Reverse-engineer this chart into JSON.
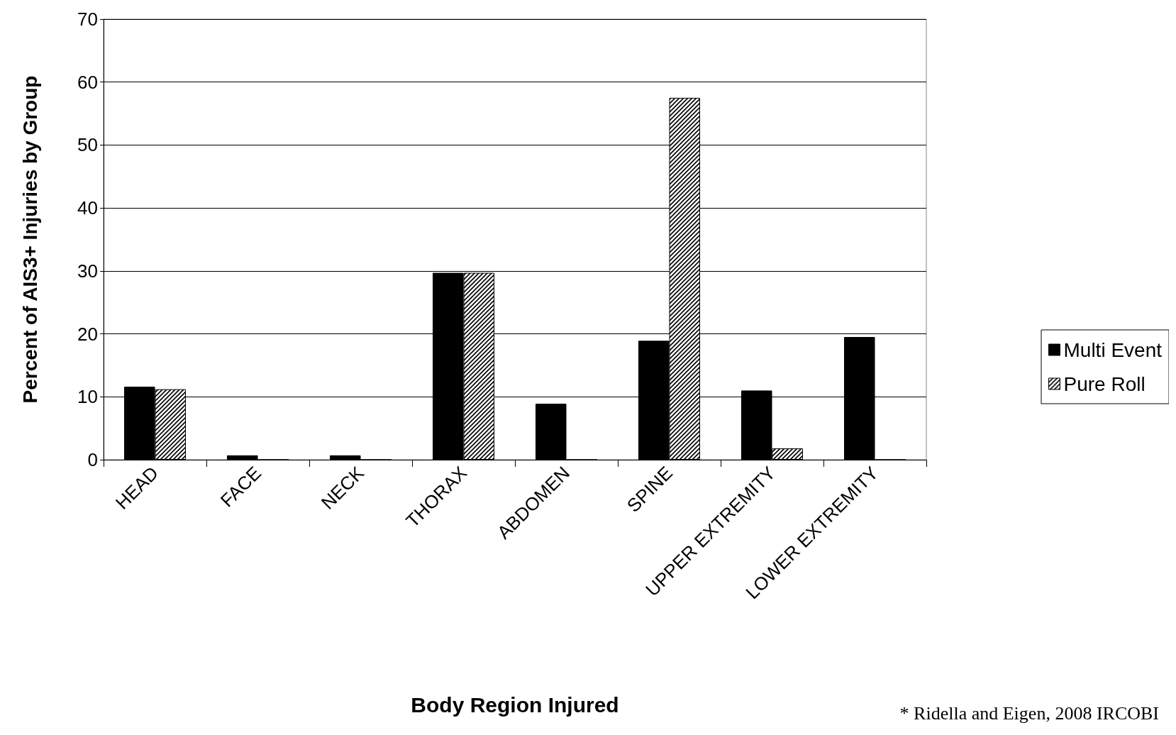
{
  "chart_data": {
    "type": "bar",
    "xlabel": "Body Region Injured",
    "ylabel": "Percent of AIS3+ Injuries by Group",
    "categories": [
      "HEAD",
      "FACE",
      "NECK",
      "THORAX",
      "ABDOMEN",
      "SPINE",
      "UPPER EXTREMITY",
      "LOWER EXTREMITY"
    ],
    "series": [
      {
        "name": "Multi Event",
        "color": "#000000",
        "values": [
          11.6,
          0.7,
          0.7,
          29.7,
          8.9,
          18.9,
          11.0,
          19.5
        ]
      },
      {
        "name": "Pure Roll",
        "color": "#000000",
        "values": [
          11.2,
          0,
          0,
          29.7,
          0,
          57.5,
          1.8,
          0
        ]
      }
    ],
    "ylim": [
      0,
      70
    ],
    "yticks": [
      0,
      10,
      20,
      30,
      40,
      50,
      60,
      70
    ],
    "grid": "y",
    "legend": "right",
    "annotations": [
      "* Ridella and Eigen, 2008 IRCOBI"
    ]
  }
}
